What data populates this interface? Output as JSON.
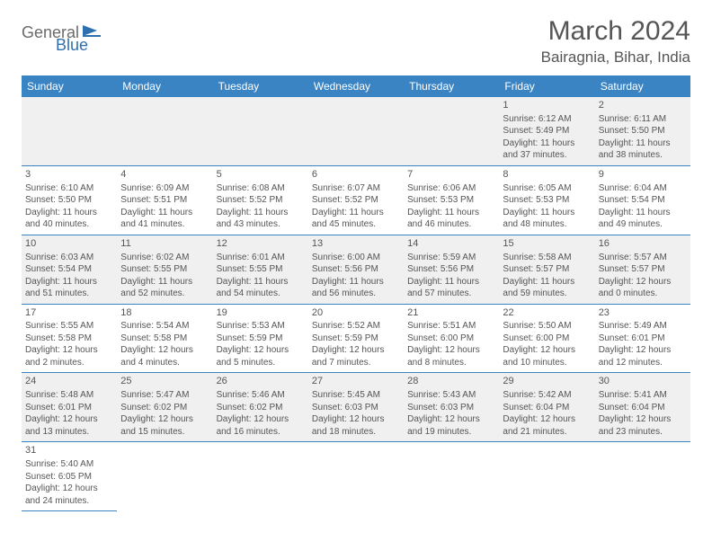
{
  "logo": {
    "part1": "General",
    "part2": "Blue"
  },
  "title": "March 2024",
  "location": "Bairagnia, Bihar, India",
  "colors": {
    "header_bg": "#3b84c4",
    "header_text": "#ffffff",
    "body_text": "#555555",
    "row_alt_bg": "#f0f0f0",
    "border": "#3b84c4",
    "logo_gray": "#6a6a6a",
    "logo_blue": "#2f6fb0"
  },
  "day_headers": [
    "Sunday",
    "Monday",
    "Tuesday",
    "Wednesday",
    "Thursday",
    "Friday",
    "Saturday"
  ],
  "weeks": [
    [
      null,
      null,
      null,
      null,
      null,
      {
        "n": "1",
        "sr": "6:12 AM",
        "ss": "5:49 PM",
        "dl1": "11 hours",
        "dl2": "and 37 minutes."
      },
      {
        "n": "2",
        "sr": "6:11 AM",
        "ss": "5:50 PM",
        "dl1": "11 hours",
        "dl2": "and 38 minutes."
      }
    ],
    [
      {
        "n": "3",
        "sr": "6:10 AM",
        "ss": "5:50 PM",
        "dl1": "11 hours",
        "dl2": "and 40 minutes."
      },
      {
        "n": "4",
        "sr": "6:09 AM",
        "ss": "5:51 PM",
        "dl1": "11 hours",
        "dl2": "and 41 minutes."
      },
      {
        "n": "5",
        "sr": "6:08 AM",
        "ss": "5:52 PM",
        "dl1": "11 hours",
        "dl2": "and 43 minutes."
      },
      {
        "n": "6",
        "sr": "6:07 AM",
        "ss": "5:52 PM",
        "dl1": "11 hours",
        "dl2": "and 45 minutes."
      },
      {
        "n": "7",
        "sr": "6:06 AM",
        "ss": "5:53 PM",
        "dl1": "11 hours",
        "dl2": "and 46 minutes."
      },
      {
        "n": "8",
        "sr": "6:05 AM",
        "ss": "5:53 PM",
        "dl1": "11 hours",
        "dl2": "and 48 minutes."
      },
      {
        "n": "9",
        "sr": "6:04 AM",
        "ss": "5:54 PM",
        "dl1": "11 hours",
        "dl2": "and 49 minutes."
      }
    ],
    [
      {
        "n": "10",
        "sr": "6:03 AM",
        "ss": "5:54 PM",
        "dl1": "11 hours",
        "dl2": "and 51 minutes."
      },
      {
        "n": "11",
        "sr": "6:02 AM",
        "ss": "5:55 PM",
        "dl1": "11 hours",
        "dl2": "and 52 minutes."
      },
      {
        "n": "12",
        "sr": "6:01 AM",
        "ss": "5:55 PM",
        "dl1": "11 hours",
        "dl2": "and 54 minutes."
      },
      {
        "n": "13",
        "sr": "6:00 AM",
        "ss": "5:56 PM",
        "dl1": "11 hours",
        "dl2": "and 56 minutes."
      },
      {
        "n": "14",
        "sr": "5:59 AM",
        "ss": "5:56 PM",
        "dl1": "11 hours",
        "dl2": "and 57 minutes."
      },
      {
        "n": "15",
        "sr": "5:58 AM",
        "ss": "5:57 PM",
        "dl1": "11 hours",
        "dl2": "and 59 minutes."
      },
      {
        "n": "16",
        "sr": "5:57 AM",
        "ss": "5:57 PM",
        "dl1": "12 hours",
        "dl2": "and 0 minutes."
      }
    ],
    [
      {
        "n": "17",
        "sr": "5:55 AM",
        "ss": "5:58 PM",
        "dl1": "12 hours",
        "dl2": "and 2 minutes."
      },
      {
        "n": "18",
        "sr": "5:54 AM",
        "ss": "5:58 PM",
        "dl1": "12 hours",
        "dl2": "and 4 minutes."
      },
      {
        "n": "19",
        "sr": "5:53 AM",
        "ss": "5:59 PM",
        "dl1": "12 hours",
        "dl2": "and 5 minutes."
      },
      {
        "n": "20",
        "sr": "5:52 AM",
        "ss": "5:59 PM",
        "dl1": "12 hours",
        "dl2": "and 7 minutes."
      },
      {
        "n": "21",
        "sr": "5:51 AM",
        "ss": "6:00 PM",
        "dl1": "12 hours",
        "dl2": "and 8 minutes."
      },
      {
        "n": "22",
        "sr": "5:50 AM",
        "ss": "6:00 PM",
        "dl1": "12 hours",
        "dl2": "and 10 minutes."
      },
      {
        "n": "23",
        "sr": "5:49 AM",
        "ss": "6:01 PM",
        "dl1": "12 hours",
        "dl2": "and 12 minutes."
      }
    ],
    [
      {
        "n": "24",
        "sr": "5:48 AM",
        "ss": "6:01 PM",
        "dl1": "12 hours",
        "dl2": "and 13 minutes."
      },
      {
        "n": "25",
        "sr": "5:47 AM",
        "ss": "6:02 PM",
        "dl1": "12 hours",
        "dl2": "and 15 minutes."
      },
      {
        "n": "26",
        "sr": "5:46 AM",
        "ss": "6:02 PM",
        "dl1": "12 hours",
        "dl2": "and 16 minutes."
      },
      {
        "n": "27",
        "sr": "5:45 AM",
        "ss": "6:03 PM",
        "dl1": "12 hours",
        "dl2": "and 18 minutes."
      },
      {
        "n": "28",
        "sr": "5:43 AM",
        "ss": "6:03 PM",
        "dl1": "12 hours",
        "dl2": "and 19 minutes."
      },
      {
        "n": "29",
        "sr": "5:42 AM",
        "ss": "6:04 PM",
        "dl1": "12 hours",
        "dl2": "and 21 minutes."
      },
      {
        "n": "30",
        "sr": "5:41 AM",
        "ss": "6:04 PM",
        "dl1": "12 hours",
        "dl2": "and 23 minutes."
      }
    ],
    [
      {
        "n": "31",
        "sr": "5:40 AM",
        "ss": "6:05 PM",
        "dl1": "12 hours",
        "dl2": "and 24 minutes."
      },
      null,
      null,
      null,
      null,
      null,
      null
    ]
  ],
  "labels": {
    "sunrise": "Sunrise: ",
    "sunset": "Sunset: ",
    "daylight": "Daylight: "
  }
}
